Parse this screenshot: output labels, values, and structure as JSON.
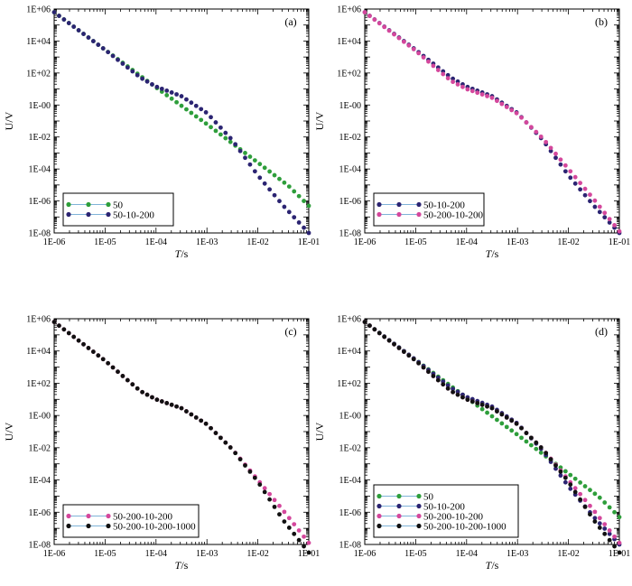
{
  "colors": {
    "s50": "#2e9e3b",
    "s50_10_200": "#2b2472",
    "s50_200_10_200": "#d4479c",
    "s50_200_10_200_1000": "#111111",
    "legend_line": "#7fb3d8"
  },
  "chart_data": [
    {
      "type": "scatter",
      "panel_label": "(a)",
      "xlabel": "T/s",
      "ylabel": "U/V",
      "xscale": "log",
      "yscale": "log",
      "xlim": [
        1e-06,
        0.1
      ],
      "ylim": [
        1e-08,
        1000000.0
      ],
      "xticks": [
        "1E-06",
        "1E-05",
        "1E-04",
        "1E-03",
        "1E-02",
        "1E-01"
      ],
      "yticks": [
        "1E-08",
        "1E-06",
        "1E-04",
        "1E-02",
        "1E-00",
        "1E+02",
        "1E+04",
        "1E+06"
      ],
      "grid": false,
      "legend_position": "bottom-left",
      "series": [
        {
          "name": "50",
          "color_key": "s50",
          "profile": "p50"
        },
        {
          "name": "50-10-200",
          "color_key": "s50_10_200",
          "profile": "p10"
        }
      ]
    },
    {
      "type": "scatter",
      "panel_label": "(b)",
      "xlabel": "T/s",
      "ylabel": "U/V",
      "xscale": "log",
      "yscale": "log",
      "xlim": [
        1e-06,
        0.1
      ],
      "ylim": [
        1e-08,
        1000000.0
      ],
      "xticks": [
        "1E-06",
        "1E-05",
        "1E-04",
        "1E-03",
        "1E-02",
        "1E-01"
      ],
      "yticks": [
        "1E-08",
        "1E-06",
        "1E-04",
        "1E-02",
        "1E-00",
        "1E+02",
        "1E+04",
        "1E+06"
      ],
      "grid": false,
      "legend_position": "bottom-left",
      "series": [
        {
          "name": "50-10-200",
          "color_key": "s50_10_200",
          "profile": "p10"
        },
        {
          "name": "50-200-10-200",
          "color_key": "s50_200_10_200",
          "profile": "p200"
        }
      ]
    },
    {
      "type": "scatter",
      "panel_label": "(c)",
      "xlabel": "T/s",
      "ylabel": "U/V",
      "xscale": "log",
      "yscale": "log",
      "xlim": [
        1e-06,
        0.1
      ],
      "ylim": [
        1e-08,
        1000000.0
      ],
      "xticks": [
        "1E-06",
        "1E-05",
        "1E-04",
        "1E-03",
        "1E-02",
        "1E-01"
      ],
      "yticks": [
        "1E-08",
        "1E-06",
        "1E-04",
        "1E-02",
        "1E-00",
        "1E+02",
        "1E+04",
        "1E+06"
      ],
      "grid": false,
      "legend_position": "bottom-left",
      "series": [
        {
          "name": "50-200-10-200",
          "color_key": "s50_200_10_200",
          "profile": "p200"
        },
        {
          "name": "50-200-10-200-1000",
          "color_key": "s50_200_10_200_1000",
          "profile": "p1000"
        }
      ]
    },
    {
      "type": "scatter",
      "panel_label": "(d)",
      "xlabel": "T/s",
      "ylabel": "U/V",
      "xscale": "log",
      "yscale": "log",
      "xlim": [
        1e-06,
        0.1
      ],
      "ylim": [
        1e-08,
        1000000.0
      ],
      "xticks": [
        "1E-06",
        "1E-05",
        "1E-04",
        "1E-03",
        "1E-02",
        "1E-01"
      ],
      "yticks": [
        "1E-08",
        "1E-06",
        "1E-04",
        "1E-02",
        "1E-00",
        "1E+02",
        "1E+04",
        "1E+06"
      ],
      "grid": false,
      "legend_position": "bottom-left",
      "series": [
        {
          "name": "50",
          "color_key": "s50",
          "profile": "p50"
        },
        {
          "name": "50-10-200",
          "color_key": "s50_10_200",
          "profile": "p10"
        },
        {
          "name": "50-200-10-200",
          "color_key": "s50_200_10_200",
          "profile": "p200"
        },
        {
          "name": "50-200-10-200-1000",
          "color_key": "s50_200_10_200_1000",
          "profile": "p1000"
        }
      ]
    }
  ],
  "profiles": {
    "p50": {
      "log_t": [
        -6,
        -5,
        -4,
        -3,
        -2,
        -1.4,
        -1
      ],
      "log_u": [
        5.8,
        3.45,
        1.1,
        -1.2,
        -3.6,
        -5.05,
        -6.3
      ]
    },
    "p10": {
      "log_t": [
        -6,
        -5,
        -4.3,
        -4,
        -3.5,
        -3,
        -2.5,
        -2,
        -1.5,
        -1
      ],
      "log_u": [
        5.8,
        3.45,
        1.7,
        1.15,
        0.55,
        -0.5,
        -2.2,
        -4.4,
        -6.3,
        -8.0
      ]
    },
    "p200": {
      "log_t": [
        -6,
        -5,
        -4.6,
        -4.3,
        -4,
        -3.5,
        -3,
        -2.5,
        -2,
        -1.5,
        -1
      ],
      "log_u": [
        5.8,
        3.4,
        2.3,
        1.5,
        1.0,
        0.45,
        -0.55,
        -2.1,
        -4.0,
        -5.9,
        -7.9
      ]
    },
    "p1000": {
      "log_t": [
        -6,
        -5,
        -4.6,
        -4.3,
        -4,
        -3.5,
        -3,
        -2.5,
        -2,
        -1.5,
        -1
      ],
      "log_u": [
        5.8,
        3.4,
        2.3,
        1.5,
        1.0,
        0.45,
        -0.55,
        -2.1,
        -4.1,
        -6.5,
        -8.5
      ]
    }
  }
}
